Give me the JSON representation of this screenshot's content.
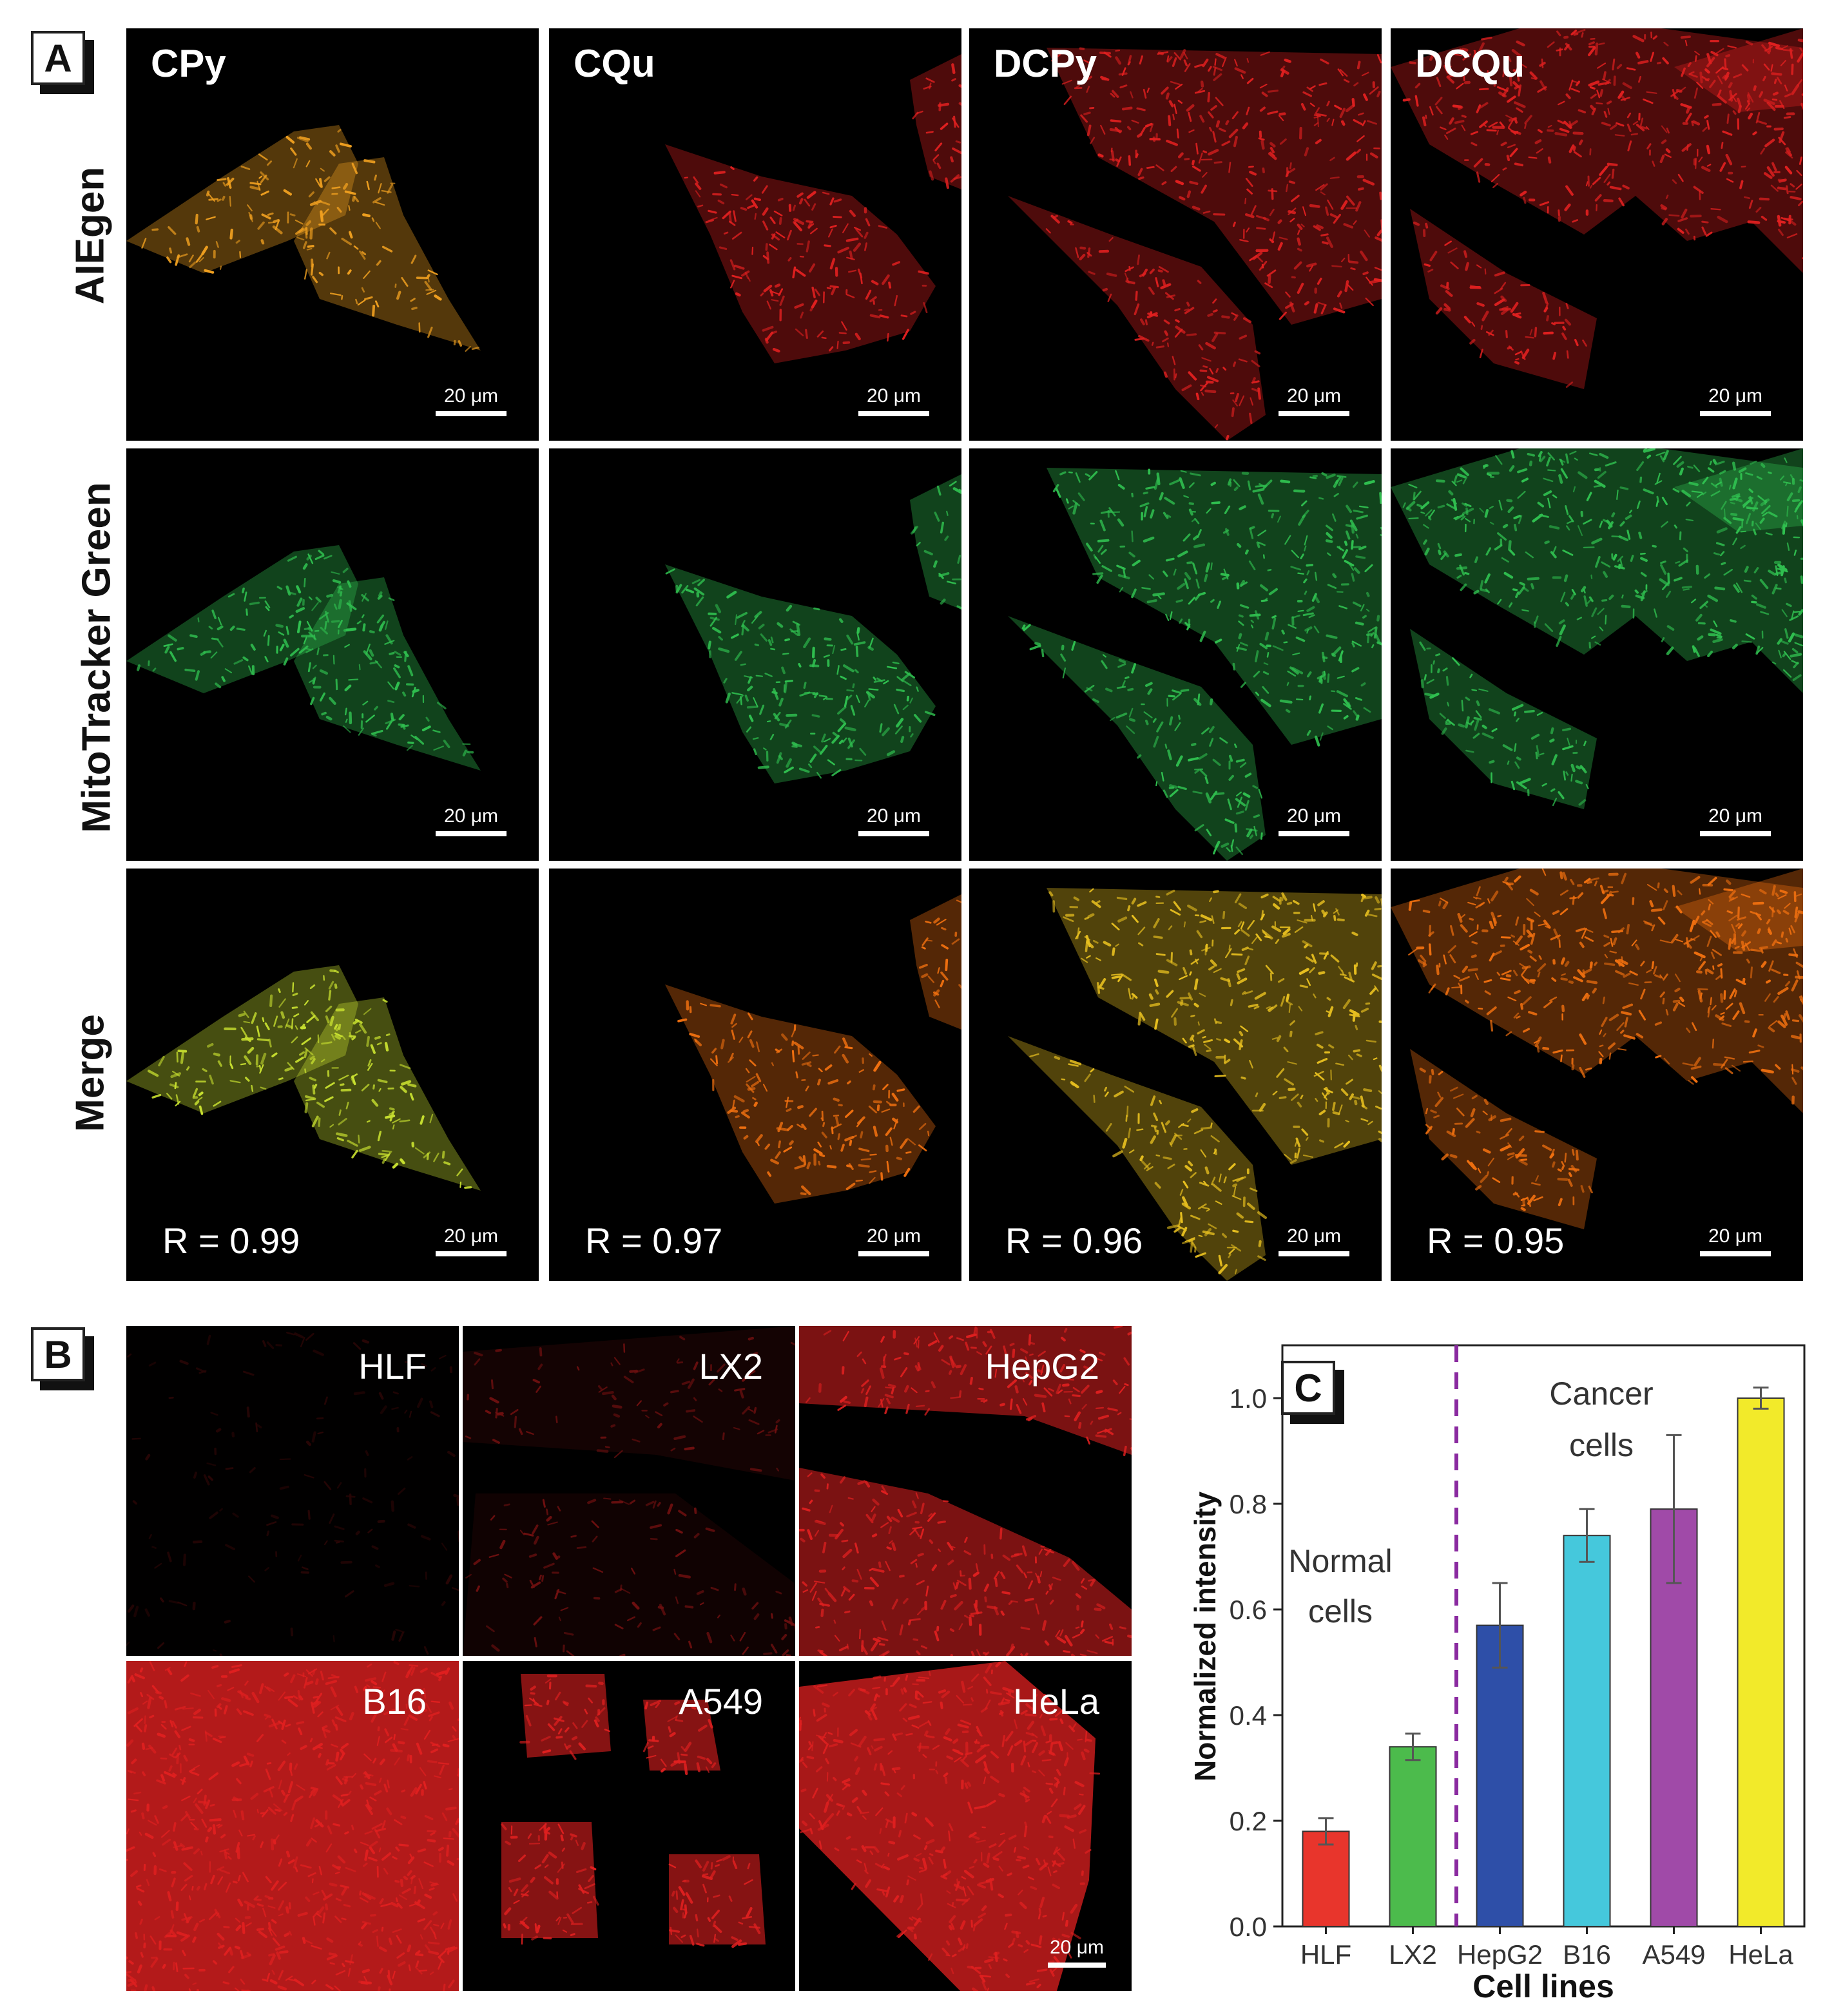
{
  "panel_a": {
    "label": "A",
    "columns": [
      "CPy",
      "CQu",
      "DCPy",
      "DCQu"
    ],
    "rows": [
      "AIEgen",
      "MitoTracker Green",
      "Merge"
    ],
    "scale_bar": "20 μm",
    "r_values": [
      "R = 0.99",
      "R = 0.97",
      "R = 0.96",
      "R = 0.95"
    ]
  },
  "panel_b": {
    "label": "B",
    "cells": [
      "HLF",
      "LX2",
      "HepG2",
      "B16",
      "A549",
      "HeLa"
    ],
    "scale_bar": "20 μm"
  },
  "panel_c": {
    "label": "C",
    "normal_label": "Normal cells",
    "normal_line1": "Normal",
    "normal_line2": "cells",
    "cancer_line1": "Cancer",
    "cancer_line2": "cells"
  },
  "colors": {
    "tile_bg": "#000000",
    "aiegen_cpy": "#f0a020",
    "aiegen_red": "#e02020",
    "mito_green": "#30c050",
    "merge_cpy": "#c8e030",
    "merge_orange": "#f07010",
    "divider": "#8a2aa0"
  },
  "chart_data": {
    "type": "bar",
    "categories": [
      "HLF",
      "LX2",
      "HepG2",
      "B16",
      "A549",
      "HeLa"
    ],
    "values": [
      0.18,
      0.34,
      0.57,
      0.74,
      0.79,
      1.0
    ],
    "errors": [
      0.025,
      0.025,
      0.08,
      0.05,
      0.14,
      0.02
    ],
    "colors": [
      "#e8352c",
      "#4cbb4c",
      "#2e4fa8",
      "#45c8dc",
      "#a04aa8",
      "#f2ea2a"
    ],
    "xlabel": "Cell lines",
    "ylabel": "Normalized intensity",
    "ylim": [
      0,
      1.1
    ],
    "yticks": [
      "0.0",
      "0.2",
      "0.4",
      "0.6",
      "0.8",
      "1.0"
    ],
    "divider_after_index": 1,
    "grid": false
  }
}
